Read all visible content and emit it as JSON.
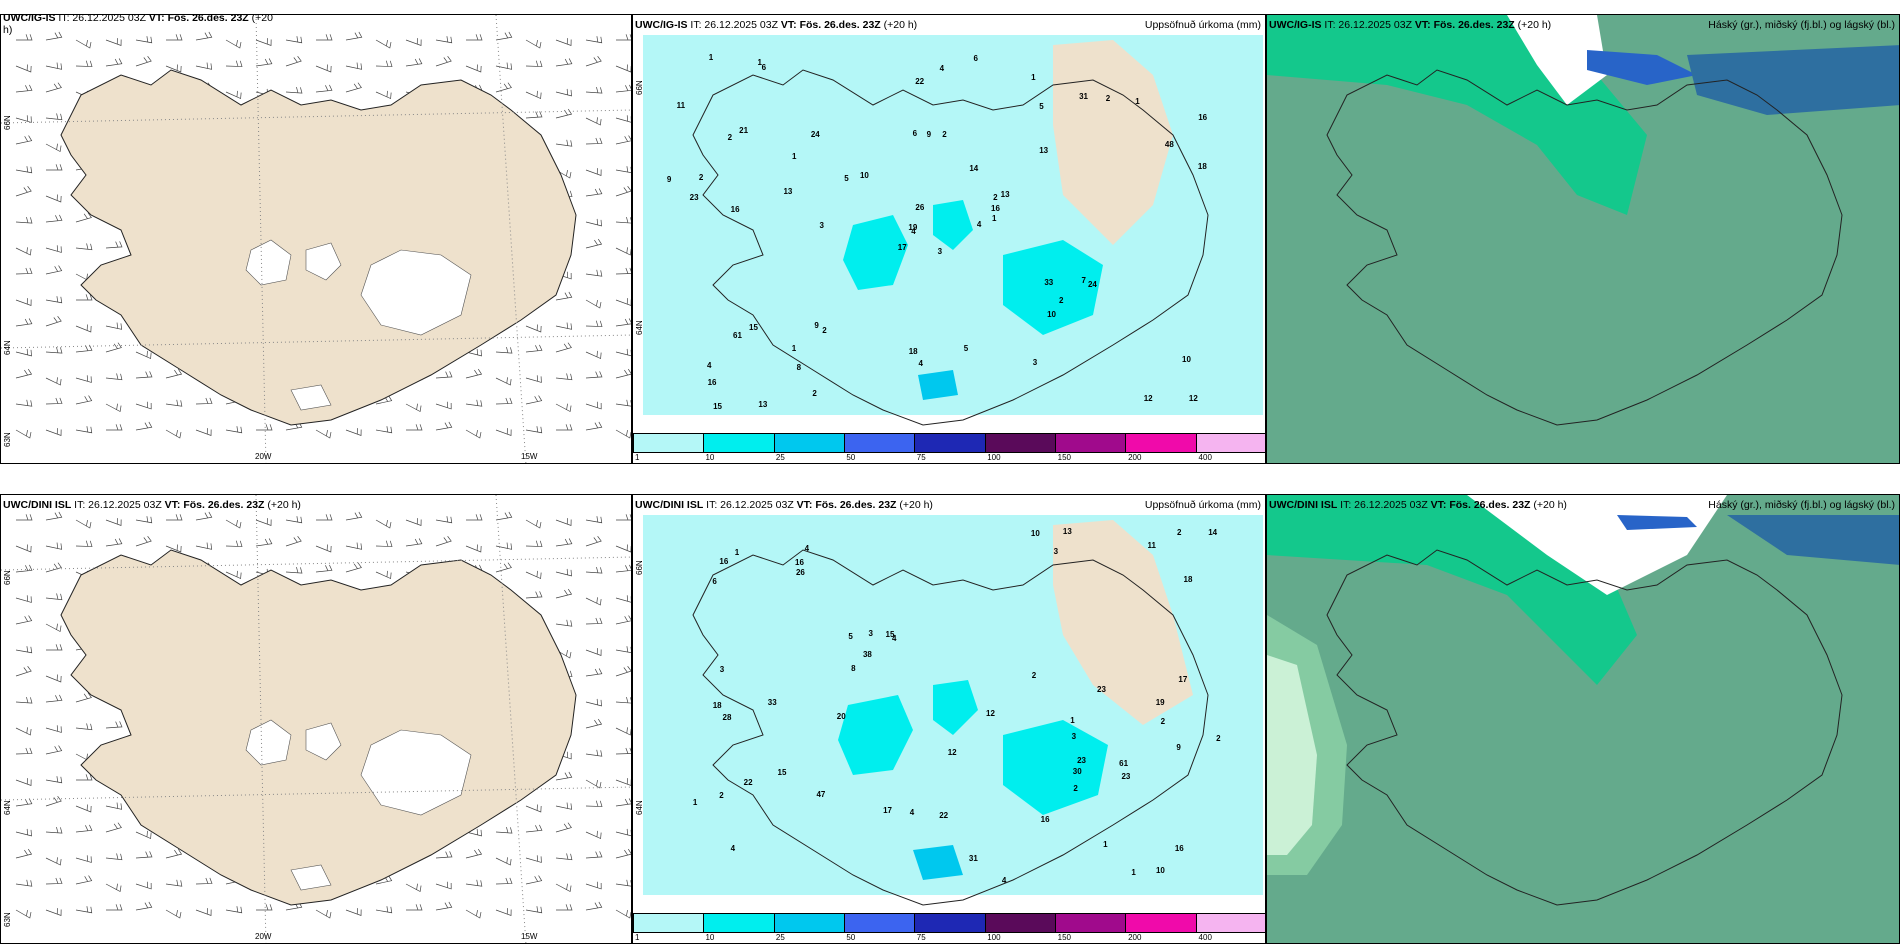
{
  "panels": {
    "top_wind": {
      "title_bold": "UWC/IG-IS",
      "title_rest": " IT: 26.12.2025 03Z ",
      "vt_bold": "VT: Fös. 26.des. 23Z",
      "vt_rest": " (+20",
      "wrap": "h)"
    },
    "top_precip": {
      "title_bold": "UWC/IG-IS",
      "title_rest": " IT: 26.12.2025 03Z ",
      "vt_bold": "VT: Fös. 26.des. 23Z",
      "vt_rest": " (+20 h)",
      "right": "Uppsöfnuð úrkoma (mm)"
    },
    "top_cloud": {
      "title_bold": "UWC/IG-IS",
      "title_rest": " IT: 26.12.2025 03Z ",
      "vt_bold": "VT: Fös. 26.des. 23Z",
      "vt_rest": " (+20 h)",
      "right": "Háský (gr.), miðský (fj.bl.) og lágský (bl.)"
    },
    "bot_wind": {
      "title_bold": "UWC/DINI ISL",
      "title_rest": " IT: 26.12.2025 03Z ",
      "vt_bold": "VT: Fös. 26.des. 23Z",
      "vt_rest": " (+20 h)"
    },
    "bot_precip": {
      "title_bold": "UWC/DINI ISL",
      "title_rest": " IT: 26.12.2025 03Z ",
      "vt_bold": "VT: Fös. 26.des. 23Z",
      "vt_rest": " (+20 h)",
      "right": "Uppsöfnuð úrkoma (mm)"
    },
    "bot_cloud": {
      "title_bold": "UWC/DINI ISL",
      "title_rest": " IT: 26.12.2025 03Z ",
      "vt_bold": "VT: Fös. 26.des. 23Z",
      "vt_rest": " (+20 h)",
      "right": "Háský (gr.), miðský (fj.bl.) og lágský (bl.)"
    }
  },
  "axes": {
    "lon_labels": [
      "20W",
      "15W"
    ],
    "lat_labels": [
      "66N",
      "64N",
      "63N"
    ]
  },
  "colorbar": {
    "ticks": [
      "1",
      "10",
      "25",
      "50",
      "75",
      "100",
      "150",
      "200",
      "400"
    ],
    "colors": [
      "#b4f7f7",
      "#00eeee",
      "#00c8ee",
      "#3c64f0",
      "#1e28b4",
      "#5a0a5a",
      "#a00a8c",
      "#f00aaa",
      "#f5b4f0"
    ]
  },
  "colors": {
    "land": "#eee1cc",
    "precip_light": "#b4f7f7",
    "precip_mid": "#00eeee",
    "precip_heavy": "#00c8ee",
    "cloud_green": "#64aa8c",
    "cloud_bright": "#14c88c",
    "cloud_blue": "#2864c8"
  },
  "precip_top": [
    "3",
    "2",
    "4",
    "4",
    "2",
    "2",
    "1",
    "2",
    "5",
    "4",
    "6",
    "12",
    "16",
    "16",
    "17",
    "13",
    "13",
    "6",
    "14",
    "15",
    "10",
    "16",
    "8",
    "9",
    "13",
    "24",
    "21",
    "22",
    "23",
    "33",
    "18",
    "19",
    "18",
    "26",
    "24",
    "31",
    "9",
    "12",
    "10",
    "7",
    "6",
    "5",
    "13",
    "10",
    "2",
    "9",
    "16",
    "15",
    "4",
    "1",
    "61",
    "48",
    "11",
    "2",
    "3",
    "1",
    "1",
    "1",
    "5",
    "1",
    "4",
    "3",
    "2",
    "1",
    "2"
  ],
  "precip_bot": [
    "3",
    "2",
    "4",
    "4",
    "4",
    "1",
    "2",
    "3",
    "5",
    "4",
    "6",
    "18",
    "16",
    "16",
    "17",
    "17",
    "12",
    "12",
    "15",
    "15",
    "14",
    "11",
    "8",
    "9",
    "10",
    "16",
    "23",
    "28",
    "26",
    "23",
    "31",
    "16",
    "38",
    "20",
    "19",
    "23",
    "30",
    "33",
    "22",
    "22",
    "18",
    "13",
    "10",
    "4",
    "61",
    "47",
    "1",
    "1",
    "2",
    "3",
    "2",
    "3",
    "2",
    "1",
    "2",
    "1"
  ]
}
